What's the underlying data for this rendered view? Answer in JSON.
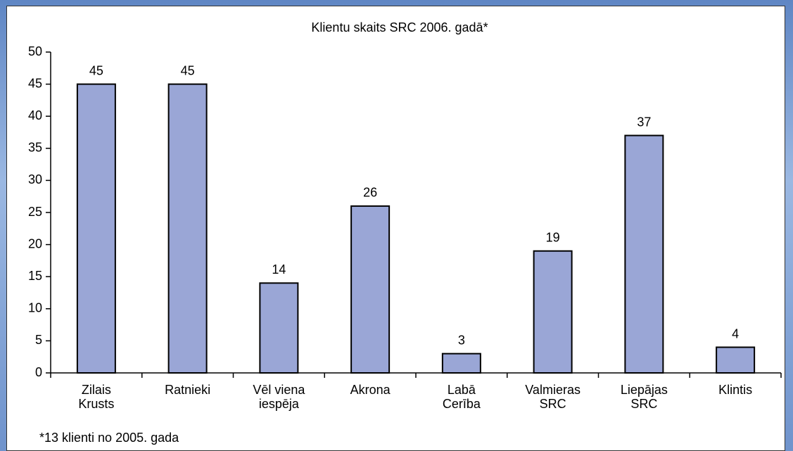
{
  "chart_data": {
    "type": "bar",
    "title": "Klientu skaits SRC 2006. gadā*",
    "categories": [
      "Zilais Krusts",
      "Ratnieki",
      "Vēl viena iespēja",
      "Akrona",
      "Labā Cerība",
      "Valmieras SRC",
      "Liepājas SRC",
      "Klintis"
    ],
    "values": [
      45,
      45,
      14,
      26,
      3,
      19,
      37,
      4
    ],
    "color": "#9aa6d6",
    "ylim": [
      0,
      50
    ],
    "yticks": [
      0,
      5,
      10,
      15,
      20,
      25,
      30,
      35,
      40,
      45,
      50
    ],
    "footnote": "*13 klienti no 2005. gada"
  }
}
